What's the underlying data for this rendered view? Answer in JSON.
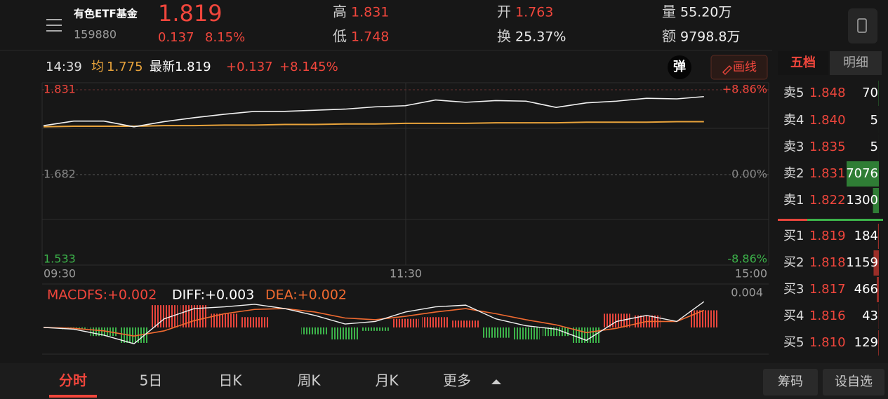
{
  "header": {
    "name": "有色ETF基金",
    "code": "159880",
    "price": "1.819",
    "change": "0.137",
    "change_pct": "8.15%",
    "stats": [
      {
        "label": "高",
        "value": "1.831"
      },
      {
        "label": "低",
        "value": "1.748"
      },
      {
        "label": "开",
        "value": "1.763"
      },
      {
        "label": "换",
        "value": "25.37%"
      },
      {
        "label": "量",
        "value": "55.20万"
      },
      {
        "label": "额",
        "value": "9798.8万"
      }
    ]
  },
  "info_bar": {
    "time": "14:39",
    "avg_label": "均",
    "avg": "1.775",
    "latest": "最新1.819",
    "change": "+0.137",
    "change_pct": "+8.145%",
    "float_button": "弹",
    "draw_button": "画线"
  },
  "side_tabs": [
    "五档",
    "明细"
  ],
  "chart": {
    "ylim": [
      1.533,
      1.831
    ],
    "yticks": [
      1.831,
      1.682,
      1.533
    ],
    "pct_labels": [
      "+8.86%",
      "0.00%",
      "-8.86%"
    ],
    "xlim": [
      0,
      240
    ],
    "time_labels": [
      "09:30",
      "11:30",
      "15:00"
    ],
    "minutes": [
      0,
      10,
      20,
      30,
      40,
      50,
      60,
      70,
      80,
      90,
      100,
      110,
      120,
      130,
      140,
      150,
      160,
      170,
      180,
      190,
      200,
      210,
      219
    ],
    "price": [
      1.768,
      1.776,
      1.776,
      1.766,
      1.775,
      1.782,
      1.788,
      1.793,
      1.793,
      1.795,
      1.797,
      1.801,
      1.803,
      1.813,
      1.809,
      1.812,
      1.811,
      1.8,
      1.808,
      1.811,
      1.816,
      1.815,
      1.819
    ],
    "avg": [
      1.766,
      1.767,
      1.767,
      1.767,
      1.768,
      1.768,
      1.769,
      1.769,
      1.77,
      1.77,
      1.771,
      1.771,
      1.772,
      1.772,
      1.772,
      1.773,
      1.773,
      1.773,
      1.774,
      1.774,
      1.774,
      1.775,
      1.775
    ],
    "macd_legend": [
      "MACDFS:+0.002",
      "DIFF:+0.003",
      "DEA:+0.002"
    ],
    "macd_ylim": [
      -0.0027,
      0.004
    ],
    "macd_yticks": [
      0.004
    ],
    "diff": [
      0,
      -0.0002,
      -0.0009,
      -0.0019,
      0.001,
      0.0022,
      0.0024,
      0.0027,
      0.0022,
      0.0014,
      0.0004,
      0.0007,
      0.0018,
      0.0024,
      0.0026,
      0.001,
      0.0002,
      -0.0002,
      -0.0015,
      0.0007,
      0.0014,
      0.0007,
      0.003
    ],
    "dea": [
      0,
      -0.0001,
      -0.0004,
      -0.001,
      -0.0004,
      0.0008,
      0.0016,
      0.0021,
      0.0022,
      0.0018,
      0.0011,
      0.0009,
      0.0013,
      0.0018,
      0.0022,
      0.0016,
      0.0009,
      0.0003,
      -0.0006,
      -0.0001,
      0.0007,
      0.0007,
      0.002
    ],
    "macd": [
      0,
      -0.0002,
      -0.001,
      -0.0018,
      0.0026,
      0.0026,
      0.0016,
      0.0012,
      0,
      -0.0008,
      -0.0014,
      -0.0004,
      0.001,
      0.0012,
      0.0008,
      -0.0012,
      -0.0014,
      -0.001,
      -0.0018,
      0.0016,
      0.0014,
      0,
      0.002
    ]
  },
  "order_book": {
    "asks": [
      {
        "label": "卖5",
        "price": "1.848",
        "volume": 70
      },
      {
        "label": "卖4",
        "price": "1.840",
        "volume": 5
      },
      {
        "label": "卖3",
        "price": "1.835",
        "volume": 5
      },
      {
        "label": "卖2",
        "price": "1.831",
        "volume": 7076
      },
      {
        "label": "卖1",
        "price": "1.822",
        "volume": 1300
      }
    ],
    "bids": [
      {
        "label": "买1",
        "price": "1.819",
        "volume": 184
      },
      {
        "label": "买2",
        "price": "1.818",
        "volume": 1159
      },
      {
        "label": "买3",
        "price": "1.817",
        "volume": 466
      },
      {
        "label": "买4",
        "price": "1.816",
        "volume": 43
      },
      {
        "label": "买5",
        "price": "1.810",
        "volume": 129
      }
    ]
  },
  "bottom_tabs": [
    "分时",
    "5日",
    "日K",
    "周K",
    "月K",
    "更多"
  ],
  "bottom_buttons": [
    "筹码",
    "设自选"
  ]
}
